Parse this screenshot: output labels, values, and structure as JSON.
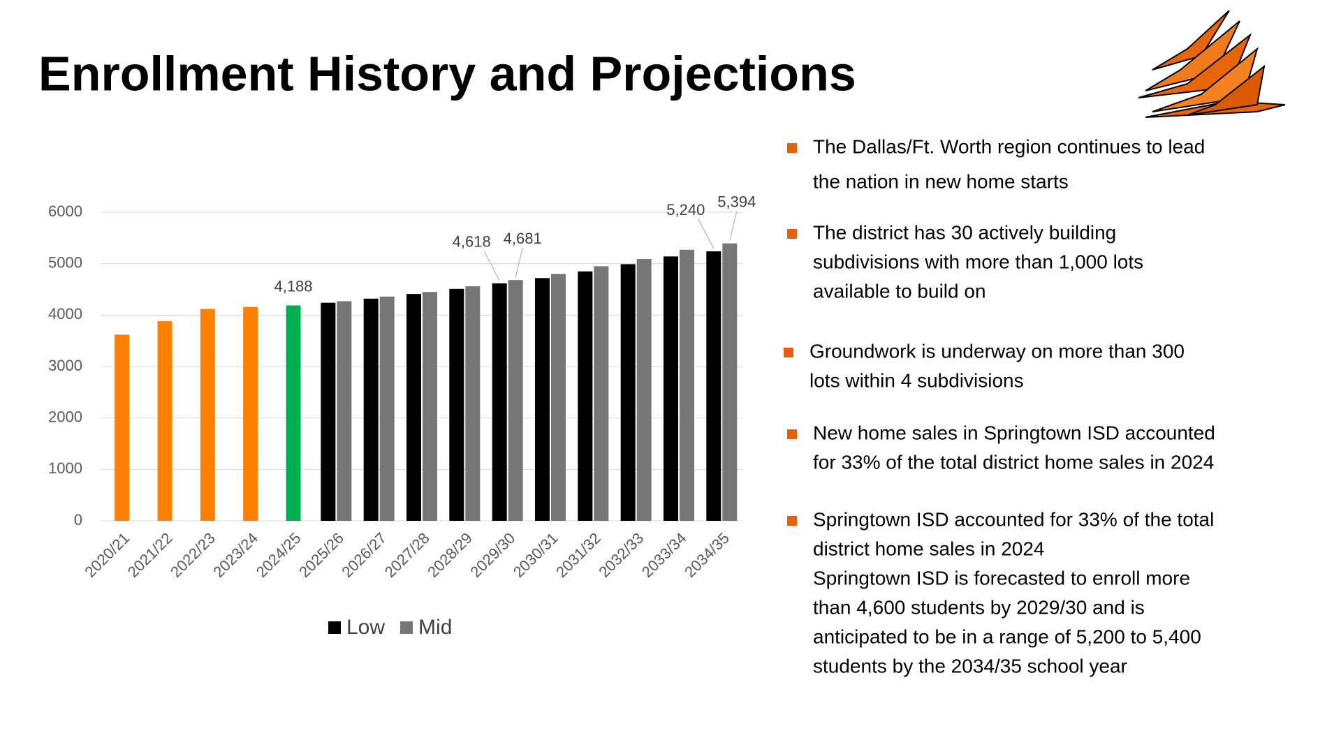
{
  "title": "Enrollment History and Projections",
  "chart_data": {
    "type": "bar",
    "categories": [
      "2020/21",
      "2021/22",
      "2022/23",
      "2023/24",
      "2024/25",
      "2025/26",
      "2026/27",
      "2027/28",
      "2028/29",
      "2029/30",
      "2030/31",
      "2031/32",
      "2032/33",
      "2033/34",
      "2034/35"
    ],
    "values": [
      3620,
      3880,
      4120,
      4160,
      4188,
      null,
      null,
      null,
      null,
      null,
      null,
      null,
      null,
      null,
      null
    ],
    "value_labels": [
      null,
      null,
      null,
      null,
      "4,188",
      null,
      null,
      null,
      null,
      null,
      null,
      null,
      null,
      null,
      null
    ],
    "colors": [
      "#ff8000",
      "#ff8000",
      "#ff8000",
      "#ff8000",
      "#00b050",
      null,
      null,
      null,
      null,
      null,
      null,
      null,
      null,
      null,
      null
    ],
    "series": [
      {
        "name": "Low",
        "color": "#000000",
        "values": [
          null,
          null,
          null,
          null,
          null,
          4240,
          4320,
          4410,
          4510,
          4618,
          4720,
          4850,
          4990,
          5140,
          5240
        ],
        "value_labels": [
          null,
          null,
          null,
          null,
          null,
          null,
          null,
          null,
          null,
          "4,618",
          null,
          null,
          null,
          null,
          "5,240"
        ]
      },
      {
        "name": "Mid",
        "color": "#767676",
        "values": [
          null,
          null,
          null,
          null,
          null,
          4270,
          4360,
          4450,
          4560,
          4681,
          4800,
          4950,
          5090,
          5270,
          5394
        ],
        "value_labels": [
          null,
          null,
          null,
          null,
          null,
          null,
          null,
          null,
          null,
          "4,681",
          null,
          null,
          null,
          null,
          "5,394"
        ]
      }
    ],
    "ylim": [
      0,
      6000
    ],
    "yticks": [
      0,
      1000,
      2000,
      3000,
      4000,
      5000,
      6000
    ],
    "grid": true,
    "legend": "bottom"
  },
  "bullets": [
    [
      "The Dallas/Ft. Worth region continues to lead",
      "the nation in new home starts"
    ],
    [
      "The district has 30 actively building",
      "subdivisions with more than 1,000 lots",
      "available to build on"
    ],
    [
      "Groundwork is underway on more than 300",
      "lots within 4 subdivisions"
    ],
    [
      "New home sales in Springtown ISD accounted",
      "for 33% of the total district home sales in 2024"
    ],
    [
      "Springtown ISD accounted for 33% of the total",
      "district home sales in 2024",
      "Springtown ISD is forecasted to enroll more",
      "than 4,600 students by 2029/30 and is",
      "anticipated to be in a range of 5,200 to 5,400",
      "students by the 2034/35 school year"
    ]
  ]
}
